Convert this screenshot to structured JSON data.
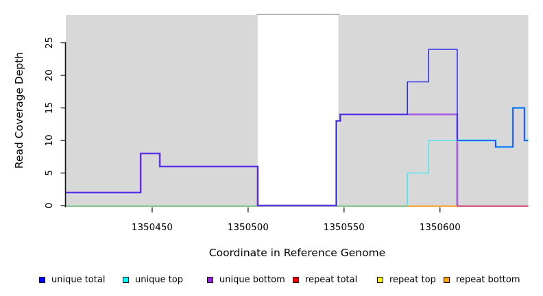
{
  "figure": {
    "xlabel": "Coordinate in Reference Genome",
    "ylabel": "Read Coverage Depth"
  },
  "legend": {
    "items": [
      {
        "label": "unique total",
        "color": "#0000ff"
      },
      {
        "label": "unique top",
        "color": "#00ffff"
      },
      {
        "label": "unique bottom",
        "color": "#a020f0"
      },
      {
        "label": "repeat total",
        "color": "#ff0000"
      },
      {
        "label": "repeat top",
        "color": "#ffff00"
      },
      {
        "label": "repeat bottom",
        "color": "#ffa500"
      }
    ]
  },
  "chart_data": {
    "type": "line",
    "subtype": "step",
    "title": "",
    "xlabel": "Coordinate in Reference Genome",
    "ylabel": "Read Coverage Depth",
    "xlim": [
      1350405,
      1350646
    ],
    "ylim": [
      0,
      29.3
    ],
    "x_ticks": [
      1350450,
      1350500,
      1350550,
      1350600
    ],
    "y_ticks": [
      0,
      5,
      10,
      15,
      20,
      25
    ],
    "grid": false,
    "legend_position": "bottom",
    "panel_bg": "#d8d8d8",
    "gap_region": {
      "from": 1350505,
      "to": 1350547,
      "fill": "#ffffff",
      "border_color": "#a8a8a8"
    },
    "series": [
      {
        "name": "unique total",
        "draw_color": "#3230e8",
        "width": 1.6,
        "steps": [
          [
            1350405,
            2
          ],
          [
            1350444,
            8
          ],
          [
            1350454,
            6
          ],
          [
            1350505,
            0
          ],
          [
            1350546,
            13
          ],
          [
            1350548,
            14
          ],
          [
            1350583,
            19
          ],
          [
            1350594,
            24
          ],
          [
            1350609,
            10
          ],
          [
            1350629,
            9
          ],
          [
            1350638,
            15
          ],
          [
            1350644,
            10
          ]
        ],
        "end": 1350646
      },
      {
        "name": "unique top",
        "draw_color": "#55e4ee",
        "width": 1.6,
        "steps": [
          [
            1350583,
            0
          ],
          [
            1350583,
            5
          ],
          [
            1350594,
            10
          ],
          [
            1350609,
            10
          ],
          [
            1350629,
            9
          ],
          [
            1350638,
            15
          ],
          [
            1350644,
            10
          ]
        ],
        "end": 1350646
      },
      {
        "name": "unique bottom",
        "draw_color": "#ab5fe3",
        "width": 2.8,
        "steps": [
          [
            1350405,
            2
          ],
          [
            1350444,
            8
          ],
          [
            1350454,
            6
          ],
          [
            1350505,
            0
          ],
          [
            1350546,
            13
          ],
          [
            1350548,
            14
          ],
          [
            1350609,
            0
          ]
        ],
        "end": 1350609
      }
    ],
    "zero_line_segments": [
      {
        "from": 1350405,
        "to": 1350583,
        "value": 0,
        "color": "#74c47c",
        "represents": "unique top / repeat total / repeat top at zero"
      },
      {
        "from": 1350583,
        "to": 1350609,
        "value": 0,
        "color": "#ff9d1e",
        "represents": "repeat bottom at zero"
      },
      {
        "from": 1350609,
        "to": 1350646,
        "value": 0,
        "color": "#d23c6a",
        "represents": "repeat total at zero"
      }
    ],
    "overlap_echo": {
      "series": "unique total",
      "echo_color_of": "unique top",
      "from": 1350609
    }
  }
}
